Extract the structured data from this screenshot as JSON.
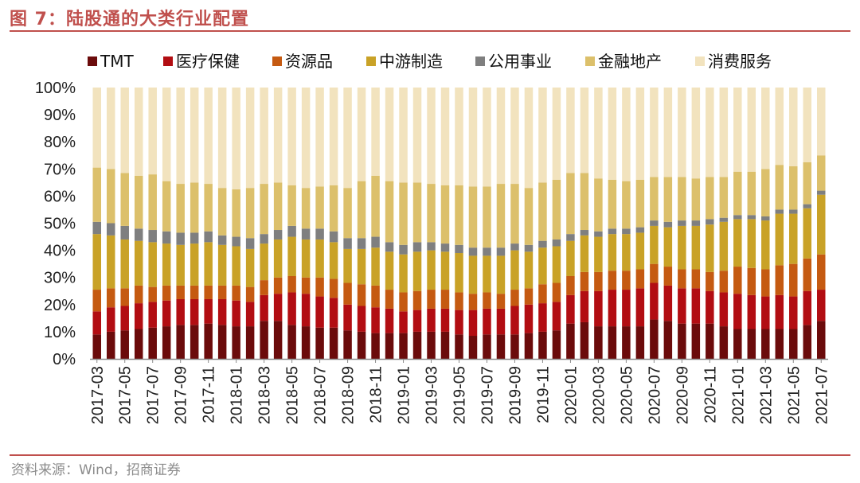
{
  "figure": {
    "title": "图 7：陆股通的大类行业配置",
    "source": "资料来源：Wind，招商证券"
  },
  "chart_data": {
    "type": "bar",
    "stacked": true,
    "title": "",
    "xlabel": "",
    "ylabel": "",
    "ylim": [
      0,
      100
    ],
    "y_ticks": [
      "0%",
      "10%",
      "20%",
      "30%",
      "40%",
      "50%",
      "60%",
      "70%",
      "80%",
      "90%",
      "100%"
    ],
    "legend_position": "top",
    "categories": [
      "2017-03",
      "2017-04",
      "2017-05",
      "2017-06",
      "2017-07",
      "2017-08",
      "2017-09",
      "2017-10",
      "2017-11",
      "2017-12",
      "2018-01",
      "2018-02",
      "2018-03",
      "2018-04",
      "2018-05",
      "2018-06",
      "2018-07",
      "2018-08",
      "2018-09",
      "2018-10",
      "2018-11",
      "2018-12",
      "2019-01",
      "2019-02",
      "2019-03",
      "2019-04",
      "2019-05",
      "2019-06",
      "2019-07",
      "2019-08",
      "2019-09",
      "2019-10",
      "2019-11",
      "2019-12",
      "2020-01",
      "2020-02",
      "2020-03",
      "2020-04",
      "2020-05",
      "2020-06",
      "2020-07",
      "2020-08",
      "2020-09",
      "2020-10",
      "2020-11",
      "2020-12",
      "2021-01",
      "2021-02",
      "2021-03",
      "2021-04",
      "2021-05",
      "2021-06",
      "2021-07"
    ],
    "x_tick_labels": [
      "2017-03",
      "2017-05",
      "2017-07",
      "2017-09",
      "2017-11",
      "2018-01",
      "2018-03",
      "2018-05",
      "2018-07",
      "2018-09",
      "2018-11",
      "2019-01",
      "2019-03",
      "2019-05",
      "2019-07",
      "2019-09",
      "2019-11",
      "2020-01",
      "2020-03",
      "2020-05",
      "2020-07",
      "2020-09",
      "2020-11",
      "2021-01",
      "2021-03",
      "2021-05",
      "2021-07"
    ],
    "series": [
      {
        "name": "TMT",
        "color": "#6b0b0b",
        "values": [
          9,
          10,
          10.5,
          11,
          11.5,
          12,
          12.5,
          12.5,
          13,
          12.5,
          12,
          12,
          14,
          14,
          12.5,
          12,
          11.5,
          11.5,
          10.5,
          10,
          9.5,
          9.5,
          9.5,
          10,
          10,
          10,
          9,
          8.5,
          9,
          9,
          9,
          9.5,
          10,
          10.5,
          13,
          13.5,
          12,
          12,
          12,
          12,
          14.5,
          14,
          13,
          13,
          13,
          12,
          11,
          11,
          11,
          11,
          11,
          12.5,
          14
        ]
      },
      {
        "name": "医疗保健",
        "color": "#b20d12",
        "values": [
          8.5,
          9,
          9,
          9.5,
          9.5,
          9.5,
          9.5,
          9.5,
          9,
          9.5,
          9.5,
          9,
          9.5,
          10,
          12,
          12,
          11.5,
          11,
          9.5,
          9.5,
          9.5,
          9,
          8,
          8,
          8.5,
          8.5,
          9,
          9.5,
          9.5,
          9.5,
          10.5,
          10.5,
          10.5,
          10.5,
          10.5,
          11.5,
          13,
          13.5,
          13.5,
          14,
          13.5,
          13,
          13,
          13,
          12,
          12.5,
          13,
          12.5,
          12,
          12.5,
          12,
          12.5,
          11.5
        ]
      },
      {
        "name": "资源品",
        "color": "#c55a11",
        "values": [
          8,
          7,
          6.5,
          6.5,
          5.5,
          5.5,
          5,
          5,
          5,
          5,
          5.5,
          5.5,
          5.5,
          6,
          6,
          6,
          7,
          7,
          8,
          8,
          8,
          7,
          7,
          7,
          7,
          7,
          6.5,
          6,
          6,
          5.5,
          6,
          6,
          7,
          7,
          7,
          7,
          7,
          7,
          7,
          7,
          7,
          7,
          7,
          7,
          7,
          8,
          10,
          10,
          10,
          11,
          12,
          12,
          13
        ]
      },
      {
        "name": "中游制造",
        "color": "#c9a227",
        "values": [
          20.5,
          19.5,
          18,
          16.5,
          16.5,
          15.5,
          15,
          15.5,
          16,
          15,
          14.5,
          14,
          13.5,
          14,
          14.5,
          14,
          14,
          13.5,
          12.5,
          13,
          14,
          14,
          14,
          14.5,
          14.5,
          14,
          14.5,
          14,
          13.5,
          14,
          14.5,
          13.5,
          13.5,
          13.5,
          13,
          13.5,
          13,
          13.5,
          13.5,
          13.5,
          14,
          14.5,
          16,
          16,
          17.5,
          18,
          17.5,
          18,
          18,
          19,
          18.5,
          18.5,
          22
        ]
      },
      {
        "name": "公用事业",
        "color": "#7f7f7f",
        "values": [
          4.5,
          4.5,
          5,
          4.5,
          4.5,
          4.5,
          4.5,
          4,
          4,
          3.5,
          3.5,
          4,
          3.5,
          3.5,
          4,
          4,
          4,
          4,
          4,
          4,
          4,
          3.5,
          3.5,
          3.5,
          3,
          3,
          3,
          3,
          3,
          3,
          2.5,
          2.5,
          2.5,
          2.5,
          2.5,
          2,
          2,
          2,
          2,
          2,
          2,
          2,
          2,
          2,
          2,
          1.5,
          1.5,
          1.5,
          1.5,
          1.5,
          1.5,
          1.5,
          1.5
        ]
      },
      {
        "name": "金融地产",
        "color": "#dcc06b",
        "values": [
          20,
          20,
          19.5,
          19.5,
          20.5,
          18.5,
          18,
          18.5,
          17.5,
          17.5,
          17.5,
          18.5,
          18.5,
          17.5,
          15,
          15,
          15.5,
          17,
          18.5,
          21,
          22.5,
          22.5,
          23,
          22,
          21.5,
          21.5,
          22,
          22.5,
          22.5,
          23.5,
          22,
          21,
          21.5,
          22,
          22.5,
          21,
          19.5,
          18,
          17.5,
          17.5,
          16,
          16.5,
          16,
          15.5,
          15.5,
          15,
          16,
          16,
          17.5,
          16.5,
          16,
          15.5,
          13
        ]
      },
      {
        "name": "消费服务",
        "color": "#f2e3be",
        "values": [
          29.5,
          30,
          31.5,
          32.5,
          32,
          34.5,
          35.5,
          35,
          35.5,
          37,
          37.5,
          37,
          35.5,
          35,
          36,
          37,
          36.5,
          36,
          37,
          34.5,
          32.5,
          34.5,
          35,
          35,
          35.5,
          36,
          36,
          36.5,
          36.5,
          35.5,
          35.5,
          37,
          35,
          34,
          31.5,
          31.5,
          33.5,
          34,
          34.5,
          34,
          33,
          33,
          33,
          33.5,
          33,
          33,
          31,
          31,
          30,
          28.5,
          29,
          27.5,
          25
        ]
      }
    ]
  }
}
